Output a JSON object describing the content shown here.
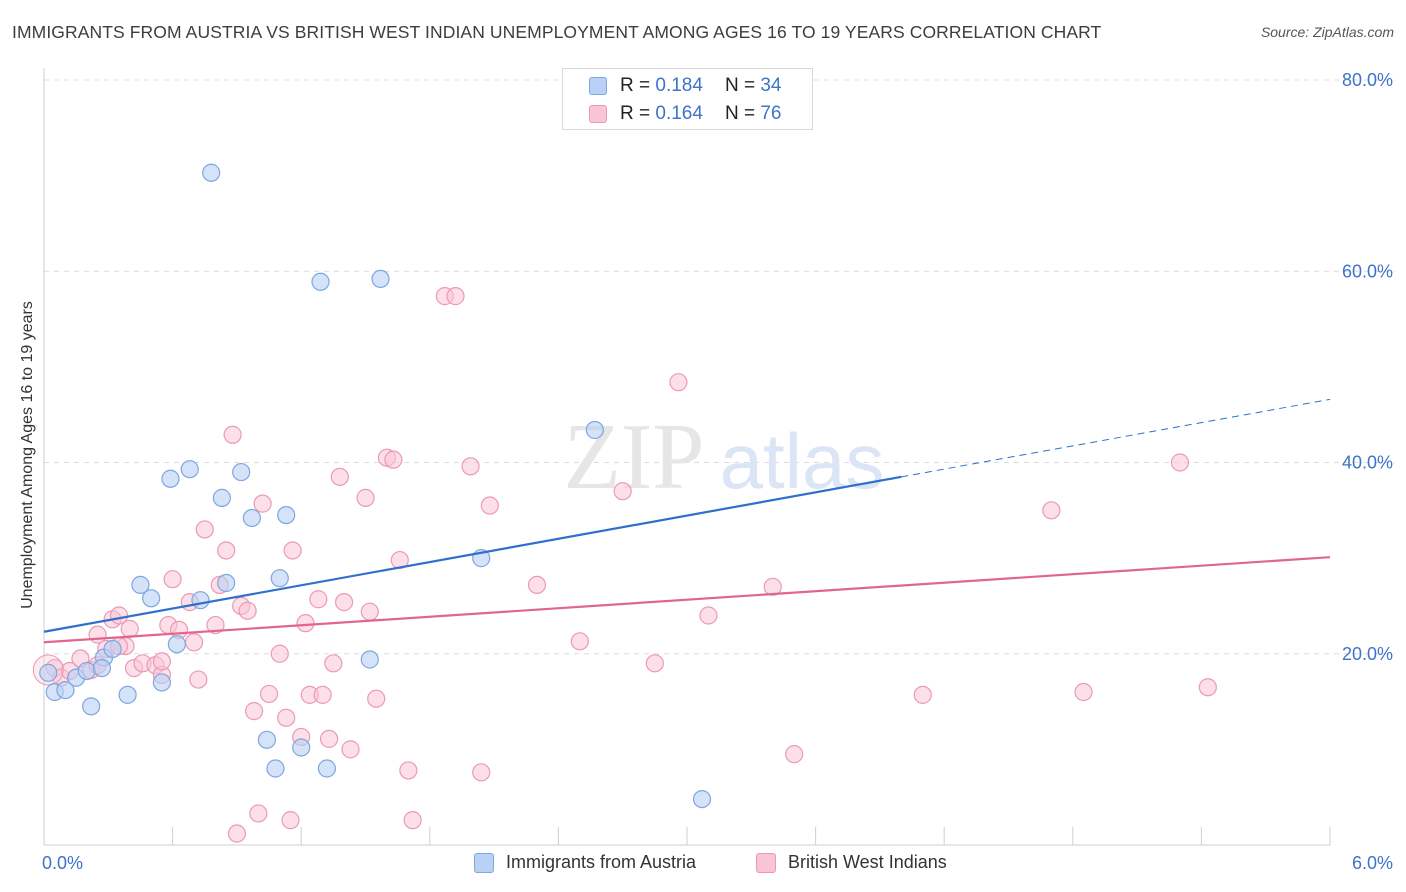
{
  "header": {
    "title": "IMMIGRANTS FROM AUSTRIA VS BRITISH WEST INDIAN UNEMPLOYMENT AMONG AGES 16 TO 19 YEARS CORRELATION CHART",
    "source": "Source: ZipAtlas.com"
  },
  "watermark": {
    "zip": "ZIP",
    "atlas": "atlas"
  },
  "legend_top": [
    {
      "r_label": "R =",
      "r_value": "0.184",
      "n_label": "N =",
      "n_value": "34"
    },
    {
      "r_label": "R =",
      "r_value": "0.164",
      "n_label": "N =",
      "n_value": "76"
    }
  ],
  "legend_bottom": [
    "Immigrants from Austria",
    "British West Indians"
  ],
  "colors": {
    "blue_fill": "#b9d1f5",
    "blue_stroke": "#7ea6e0",
    "blue_line": "#2f6fce",
    "pink_fill": "#f9c5d5",
    "pink_stroke": "#eb9ab5",
    "pink_line": "#e0668f",
    "tick_label": "#3d73c9",
    "grid": "#dcdcdc"
  },
  "chart_data": {
    "type": "scatter",
    "ylabel": "Unemployment Among Ages 16 to 19 years",
    "xlim": [
      0,
      6
    ],
    "ylim": [
      0,
      80
    ],
    "x_tick_labels": [
      "0.0%",
      "6.0%"
    ],
    "y_ticks": [
      20,
      40,
      60,
      80
    ],
    "y_tick_labels": [
      "20.0%",
      "40.0%",
      "60.0%",
      "80.0%"
    ],
    "grid": true,
    "series": [
      {
        "name": "Immigrants from Austria",
        "color": "blue",
        "points": [
          [
            0.02,
            18.0
          ],
          [
            0.05,
            16.0
          ],
          [
            0.1,
            16.2
          ],
          [
            0.15,
            17.5
          ],
          [
            0.2,
            18.2
          ],
          [
            0.22,
            14.5
          ],
          [
            0.28,
            19.6
          ],
          [
            0.32,
            20.5
          ],
          [
            0.39,
            15.7
          ],
          [
            0.45,
            27.2
          ],
          [
            0.5,
            25.8
          ],
          [
            0.55,
            17.0
          ],
          [
            0.59,
            38.3
          ],
          [
            0.62,
            21.0
          ],
          [
            0.68,
            39.3
          ],
          [
            0.73,
            25.6
          ],
          [
            0.78,
            70.3
          ],
          [
            0.83,
            36.3
          ],
          [
            0.85,
            27.4
          ],
          [
            0.92,
            39.0
          ],
          [
            0.97,
            34.2
          ],
          [
            1.04,
            11.0
          ],
          [
            1.08,
            8.0
          ],
          [
            1.1,
            27.9
          ],
          [
            1.13,
            34.5
          ],
          [
            1.2,
            10.2
          ],
          [
            1.29,
            58.9
          ],
          [
            1.32,
            8.0
          ],
          [
            1.52,
            19.4
          ],
          [
            1.57,
            59.2
          ],
          [
            2.04,
            30.0
          ],
          [
            2.57,
            43.4
          ],
          [
            3.07,
            4.8
          ],
          [
            0.27,
            18.5
          ]
        ]
      },
      {
        "name": "British West Indians",
        "color": "pink",
        "points": [
          [
            0.05,
            18.5
          ],
          [
            0.08,
            17.5
          ],
          [
            0.12,
            18.2
          ],
          [
            0.17,
            19.5
          ],
          [
            0.22,
            18.3
          ],
          [
            0.25,
            22.0
          ],
          [
            0.29,
            20.5
          ],
          [
            0.32,
            23.6
          ],
          [
            0.35,
            24.0
          ],
          [
            0.38,
            20.8
          ],
          [
            0.42,
            18.5
          ],
          [
            0.46,
            19.0
          ],
          [
            0.52,
            18.8
          ],
          [
            0.55,
            17.8
          ],
          [
            0.58,
            23.0
          ],
          [
            0.6,
            27.8
          ],
          [
            0.63,
            22.5
          ],
          [
            0.68,
            25.4
          ],
          [
            0.72,
            17.3
          ],
          [
            0.75,
            33.0
          ],
          [
            0.8,
            23.0
          ],
          [
            0.82,
            27.2
          ],
          [
            0.85,
            30.8
          ],
          [
            0.88,
            42.9
          ],
          [
            0.92,
            25.0
          ],
          [
            0.95,
            24.5
          ],
          [
            0.98,
            14.0
          ],
          [
            1.02,
            35.7
          ],
          [
            1.05,
            15.8
          ],
          [
            1.1,
            20.0
          ],
          [
            1.13,
            13.3
          ],
          [
            1.16,
            30.8
          ],
          [
            1.2,
            11.3
          ],
          [
            1.24,
            15.7
          ],
          [
            1.28,
            25.7
          ],
          [
            1.3,
            15.7
          ],
          [
            1.35,
            19.0
          ],
          [
            1.38,
            38.5
          ],
          [
            1.4,
            25.4
          ],
          [
            1.43,
            10.0
          ],
          [
            1.5,
            36.3
          ],
          [
            1.52,
            24.4
          ],
          [
            1.55,
            15.3
          ],
          [
            1.6,
            40.5
          ],
          [
            1.63,
            40.3
          ],
          [
            1.66,
            29.8
          ],
          [
            1.7,
            7.8
          ],
          [
            1.72,
            2.6
          ],
          [
            1.87,
            57.4
          ],
          [
            1.92,
            57.4
          ],
          [
            1.99,
            39.6
          ],
          [
            2.04,
            7.6
          ],
          [
            2.08,
            35.5
          ],
          [
            2.3,
            27.2
          ],
          [
            2.5,
            21.3
          ],
          [
            2.7,
            37.0
          ],
          [
            2.85,
            19.0
          ],
          [
            2.96,
            48.4
          ],
          [
            3.1,
            24.0
          ],
          [
            3.4,
            27.0
          ],
          [
            3.5,
            9.5
          ],
          [
            4.1,
            15.7
          ],
          [
            4.7,
            35.0
          ],
          [
            4.85,
            16.0
          ],
          [
            5.3,
            40.0
          ],
          [
            5.43,
            16.5
          ],
          [
            0.35,
            20.8
          ],
          [
            0.55,
            19.2
          ],
          [
            0.9,
            1.2
          ],
          [
            1.0,
            3.3
          ],
          [
            1.15,
            2.6
          ],
          [
            1.22,
            23.2
          ],
          [
            1.33,
            11.1
          ],
          [
            0.25,
            18.8
          ],
          [
            0.4,
            22.6
          ],
          [
            0.7,
            21.2
          ]
        ]
      }
    ],
    "trendlines": [
      {
        "series": "Immigrants from Austria",
        "x": [
          0.0,
          4.0
        ],
        "y": [
          22.3,
          38.5
        ],
        "dashed_extension": {
          "x": [
            4.0,
            6.0
          ],
          "y": [
            38.5,
            46.6
          ]
        }
      },
      {
        "series": "British West Indians",
        "x": [
          0.0,
          6.0
        ],
        "y": [
          21.2,
          30.1
        ]
      }
    ]
  }
}
